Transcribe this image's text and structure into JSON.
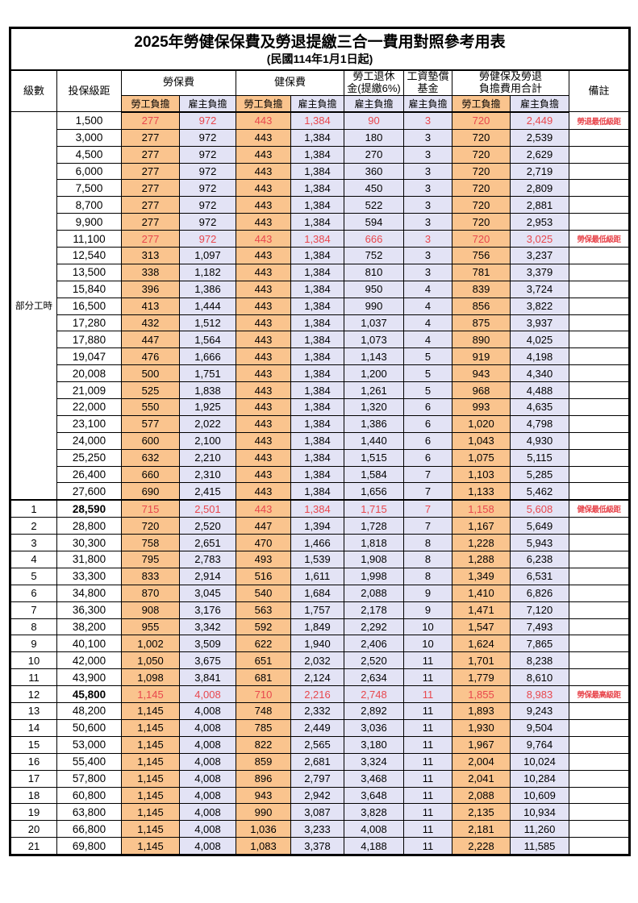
{
  "title": "2025年勞健保保費及勞退提繳三合一費用對照參考用表",
  "subtitle": "(民國114年1月1日起)",
  "colors": {
    "employee_share_bg": "#FAC48E",
    "employer_share_bg": "#E3E3F5",
    "highlight_red": "#E8474D",
    "border": "#000000"
  },
  "header": {
    "level": "級數",
    "bracket": "投保級距",
    "labor_ins": "勞保費",
    "health_ins": "健保費",
    "pension_line1": "勞工退休",
    "pension_line2": "金(提繳6%)",
    "fund_line1": "工資墊償",
    "fund_line2": "基金",
    "total_line1": "勞健保及勞退",
    "total_line2": "負擔費用合計",
    "remark": "備註",
    "employee": "勞工負擔",
    "employer": "雇主負擔"
  },
  "part_time_label": "部分工時",
  "part_time_rowspan": 23,
  "rows": [
    {
      "lv": "",
      "br": "1,500",
      "v": [
        "277",
        "972",
        "443",
        "1,384",
        "90",
        "3",
        "720",
        "2,449"
      ],
      "rm": "勞退最低級距",
      "hl": true
    },
    {
      "lv": "",
      "br": "3,000",
      "v": [
        "277",
        "972",
        "443",
        "1,384",
        "180",
        "3",
        "720",
        "2,539"
      ],
      "rm": ""
    },
    {
      "lv": "",
      "br": "4,500",
      "v": [
        "277",
        "972",
        "443",
        "1,384",
        "270",
        "3",
        "720",
        "2,629"
      ],
      "rm": ""
    },
    {
      "lv": "",
      "br": "6,000",
      "v": [
        "277",
        "972",
        "443",
        "1,384",
        "360",
        "3",
        "720",
        "2,719"
      ],
      "rm": ""
    },
    {
      "lv": "",
      "br": "7,500",
      "v": [
        "277",
        "972",
        "443",
        "1,384",
        "450",
        "3",
        "720",
        "2,809"
      ],
      "rm": ""
    },
    {
      "lv": "",
      "br": "8,700",
      "v": [
        "277",
        "972",
        "443",
        "1,384",
        "522",
        "3",
        "720",
        "2,881"
      ],
      "rm": ""
    },
    {
      "lv": "",
      "br": "9,900",
      "v": [
        "277",
        "972",
        "443",
        "1,384",
        "594",
        "3",
        "720",
        "2,953"
      ],
      "rm": ""
    },
    {
      "lv": "",
      "br": "11,100",
      "v": [
        "277",
        "972",
        "443",
        "1,384",
        "666",
        "3",
        "720",
        "3,025"
      ],
      "rm": "勞保最低級距",
      "hl": true
    },
    {
      "lv": "",
      "br": "12,540",
      "v": [
        "313",
        "1,097",
        "443",
        "1,384",
        "752",
        "3",
        "756",
        "3,237"
      ],
      "rm": ""
    },
    {
      "lv": "",
      "br": "13,500",
      "v": [
        "338",
        "1,182",
        "443",
        "1,384",
        "810",
        "3",
        "781",
        "3,379"
      ],
      "rm": ""
    },
    {
      "lv": "",
      "br": "15,840",
      "v": [
        "396",
        "1,386",
        "443",
        "1,384",
        "950",
        "4",
        "839",
        "3,724"
      ],
      "rm": ""
    },
    {
      "lv": "",
      "br": "16,500",
      "v": [
        "413",
        "1,444",
        "443",
        "1,384",
        "990",
        "4",
        "856",
        "3,822"
      ],
      "rm": ""
    },
    {
      "lv": "",
      "br": "17,280",
      "v": [
        "432",
        "1,512",
        "443",
        "1,384",
        "1,037",
        "4",
        "875",
        "3,937"
      ],
      "rm": ""
    },
    {
      "lv": "",
      "br": "17,880",
      "v": [
        "447",
        "1,564",
        "443",
        "1,384",
        "1,073",
        "4",
        "890",
        "4,025"
      ],
      "rm": ""
    },
    {
      "lv": "",
      "br": "19,047",
      "v": [
        "476",
        "1,666",
        "443",
        "1,384",
        "1,143",
        "5",
        "919",
        "4,198"
      ],
      "rm": ""
    },
    {
      "lv": "",
      "br": "20,008",
      "v": [
        "500",
        "1,751",
        "443",
        "1,384",
        "1,200",
        "5",
        "943",
        "4,340"
      ],
      "rm": ""
    },
    {
      "lv": "",
      "br": "21,009",
      "v": [
        "525",
        "1,838",
        "443",
        "1,384",
        "1,261",
        "5",
        "968",
        "4,488"
      ],
      "rm": ""
    },
    {
      "lv": "",
      "br": "22,000",
      "v": [
        "550",
        "1,925",
        "443",
        "1,384",
        "1,320",
        "6",
        "993",
        "4,635"
      ],
      "rm": ""
    },
    {
      "lv": "",
      "br": "23,100",
      "v": [
        "577",
        "2,022",
        "443",
        "1,384",
        "1,386",
        "6",
        "1,020",
        "4,798"
      ],
      "rm": ""
    },
    {
      "lv": "",
      "br": "24,000",
      "v": [
        "600",
        "2,100",
        "443",
        "1,384",
        "1,440",
        "6",
        "1,043",
        "4,930"
      ],
      "rm": ""
    },
    {
      "lv": "",
      "br": "25,250",
      "v": [
        "632",
        "2,210",
        "443",
        "1,384",
        "1,515",
        "6",
        "1,075",
        "5,115"
      ],
      "rm": ""
    },
    {
      "lv": "",
      "br": "26,400",
      "v": [
        "660",
        "2,310",
        "443",
        "1,384",
        "1,584",
        "7",
        "1,103",
        "5,285"
      ],
      "rm": ""
    },
    {
      "lv": "",
      "br": "27,600",
      "v": [
        "690",
        "2,415",
        "443",
        "1,384",
        "1,656",
        "7",
        "1,133",
        "5,462"
      ],
      "rm": ""
    },
    {
      "lv": "1",
      "br": "28,590",
      "v": [
        "715",
        "2,501",
        "443",
        "1,384",
        "1,715",
        "7",
        "1,158",
        "5,608"
      ],
      "rm": "健保最低級距",
      "hl": true,
      "bb": true,
      "tt": true
    },
    {
      "lv": "2",
      "br": "28,800",
      "v": [
        "720",
        "2,520",
        "447",
        "1,394",
        "1,728",
        "7",
        "1,167",
        "5,649"
      ],
      "rm": ""
    },
    {
      "lv": "3",
      "br": "30,300",
      "v": [
        "758",
        "2,651",
        "470",
        "1,466",
        "1,818",
        "8",
        "1,228",
        "5,943"
      ],
      "rm": ""
    },
    {
      "lv": "4",
      "br": "31,800",
      "v": [
        "795",
        "2,783",
        "493",
        "1,539",
        "1,908",
        "8",
        "1,288",
        "6,238"
      ],
      "rm": ""
    },
    {
      "lv": "5",
      "br": "33,300",
      "v": [
        "833",
        "2,914",
        "516",
        "1,611",
        "1,998",
        "8",
        "1,349",
        "6,531"
      ],
      "rm": ""
    },
    {
      "lv": "6",
      "br": "34,800",
      "v": [
        "870",
        "3,045",
        "540",
        "1,684",
        "2,088",
        "9",
        "1,410",
        "6,826"
      ],
      "rm": ""
    },
    {
      "lv": "7",
      "br": "36,300",
      "v": [
        "908",
        "3,176",
        "563",
        "1,757",
        "2,178",
        "9",
        "1,471",
        "7,120"
      ],
      "rm": ""
    },
    {
      "lv": "8",
      "br": "38,200",
      "v": [
        "955",
        "3,342",
        "592",
        "1,849",
        "2,292",
        "10",
        "1,547",
        "7,493"
      ],
      "rm": ""
    },
    {
      "lv": "9",
      "br": "40,100",
      "v": [
        "1,002",
        "3,509",
        "622",
        "1,940",
        "2,406",
        "10",
        "1,624",
        "7,865"
      ],
      "rm": ""
    },
    {
      "lv": "10",
      "br": "42,000",
      "v": [
        "1,050",
        "3,675",
        "651",
        "2,032",
        "2,520",
        "11",
        "1,701",
        "8,238"
      ],
      "rm": ""
    },
    {
      "lv": "11",
      "br": "43,900",
      "v": [
        "1,098",
        "3,841",
        "681",
        "2,124",
        "2,634",
        "11",
        "1,779",
        "8,610"
      ],
      "rm": ""
    },
    {
      "lv": "12",
      "br": "45,800",
      "v": [
        "1,145",
        "4,008",
        "710",
        "2,216",
        "2,748",
        "11",
        "1,855",
        "8,983"
      ],
      "rm": "勞保最高級距",
      "hl": true,
      "bb": true
    },
    {
      "lv": "13",
      "br": "48,200",
      "v": [
        "1,145",
        "4,008",
        "748",
        "2,332",
        "2,892",
        "11",
        "1,893",
        "9,243"
      ],
      "rm": ""
    },
    {
      "lv": "14",
      "br": "50,600",
      "v": [
        "1,145",
        "4,008",
        "785",
        "2,449",
        "3,036",
        "11",
        "1,930",
        "9,504"
      ],
      "rm": ""
    },
    {
      "lv": "15",
      "br": "53,000",
      "v": [
        "1,145",
        "4,008",
        "822",
        "2,565",
        "3,180",
        "11",
        "1,967",
        "9,764"
      ],
      "rm": ""
    },
    {
      "lv": "16",
      "br": "55,400",
      "v": [
        "1,145",
        "4,008",
        "859",
        "2,681",
        "3,324",
        "11",
        "2,004",
        "10,024"
      ],
      "rm": ""
    },
    {
      "lv": "17",
      "br": "57,800",
      "v": [
        "1,145",
        "4,008",
        "896",
        "2,797",
        "3,468",
        "11",
        "2,041",
        "10,284"
      ],
      "rm": ""
    },
    {
      "lv": "18",
      "br": "60,800",
      "v": [
        "1,145",
        "4,008",
        "943",
        "2,942",
        "3,648",
        "11",
        "2,088",
        "10,609"
      ],
      "rm": ""
    },
    {
      "lv": "19",
      "br": "63,800",
      "v": [
        "1,145",
        "4,008",
        "990",
        "3,087",
        "3,828",
        "11",
        "2,135",
        "10,934"
      ],
      "rm": ""
    },
    {
      "lv": "20",
      "br": "66,800",
      "v": [
        "1,145",
        "4,008",
        "1,036",
        "3,233",
        "4,008",
        "11",
        "2,181",
        "11,260"
      ],
      "rm": ""
    },
    {
      "lv": "21",
      "br": "69,800",
      "v": [
        "1,145",
        "4,008",
        "1,083",
        "3,378",
        "4,188",
        "11",
        "2,228",
        "11,585"
      ],
      "rm": ""
    }
  ],
  "column_bg_pattern": [
    "oc",
    "lc",
    "oc",
    "lc",
    "lc",
    "lc",
    "oc",
    "lc"
  ]
}
